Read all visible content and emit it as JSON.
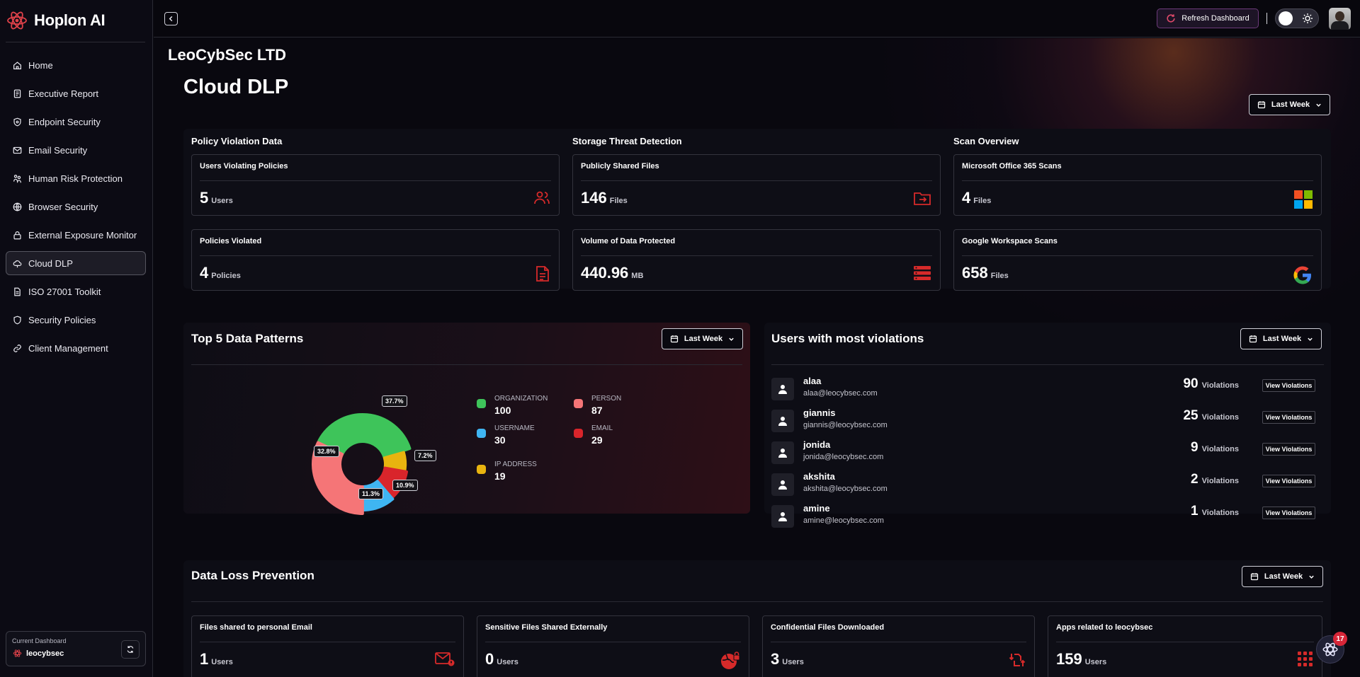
{
  "brand": {
    "name": "Hoplon AI"
  },
  "sidebar": {
    "items": [
      {
        "label": "Home",
        "icon": "home-icon"
      },
      {
        "label": "Executive Report",
        "icon": "report-icon"
      },
      {
        "label": "Endpoint Security",
        "icon": "shield-icon"
      },
      {
        "label": "Email Security",
        "icon": "mail-icon"
      },
      {
        "label": "Human Risk Protection",
        "icon": "users-icon"
      },
      {
        "label": "Browser Security",
        "icon": "globe-icon"
      },
      {
        "label": "External Exposure Monitor",
        "icon": "lock-icon"
      },
      {
        "label": "Cloud DLP",
        "icon": "cloud-icon"
      },
      {
        "label": "ISO 27001 Toolkit",
        "icon": "document-icon"
      },
      {
        "label": "Security Policies",
        "icon": "shield-icon"
      },
      {
        "label": "Client Management",
        "icon": "link-icon"
      }
    ],
    "active": "Cloud DLP",
    "current_dashboard_label": "Current Dashboard",
    "current_dashboard_name": "leocybsec"
  },
  "topbar": {
    "refresh_label": "Refresh Dashboard"
  },
  "org_name": "LeoCybSec LTD",
  "page_title": "Cloud DLP",
  "period_label": "Last Week",
  "colors": {
    "accent_red": "#d62a2a",
    "green": "#3ec45a",
    "blue": "#3fb5f2",
    "salmon": "#f57577",
    "red": "#d9252b",
    "yellow": "#e8b40f"
  },
  "overview": {
    "policy": {
      "title": "Policy Violation Data",
      "cards": [
        {
          "title": "Users Violating Policies",
          "value": "5",
          "unit": "Users",
          "icon": "users-icon"
        },
        {
          "title": "Policies Violated",
          "value": "4",
          "unit": "Policies",
          "icon": "document-icon"
        }
      ]
    },
    "storage": {
      "title": "Storage Threat Detection",
      "cards": [
        {
          "title": "Publicly Shared Files",
          "value": "146",
          "unit": "Files",
          "icon": "folder-share-icon"
        },
        {
          "title": "Volume of Data Protected",
          "value": "440.96",
          "unit": "MB",
          "icon": "database-icon"
        }
      ]
    },
    "scan": {
      "title": "Scan Overview",
      "cards": [
        {
          "title": "Microsoft Office 365 Scans",
          "value": "4",
          "unit": "Files",
          "icon": "microsoft-logo-icon"
        },
        {
          "title": "Google Workspace Scans",
          "value": "658",
          "unit": "Files",
          "icon": "google-logo-icon"
        }
      ]
    }
  },
  "patterns": {
    "title": "Top 5 Data Patterns",
    "legend": [
      {
        "label": "ORGANIZATION",
        "value": "100",
        "color": "#3ec45a"
      },
      {
        "label": "PERSON",
        "value": "87",
        "color": "#f57577"
      },
      {
        "label": "USERNAME",
        "value": "30",
        "color": "#3fb5f2"
      },
      {
        "label": "EMAIL",
        "value": "29",
        "color": "#d9252b"
      },
      {
        "label": "IP ADDRESS",
        "value": "19",
        "color": "#e8b40f"
      }
    ],
    "percent_labels": [
      "37.7%",
      "7.2%",
      "10.9%",
      "11.3%",
      "32.8%"
    ]
  },
  "chart_data": {
    "type": "pie",
    "variant": "donut",
    "title": "Top 5 Data Patterns",
    "categories": [
      "ORGANIZATION",
      "IP ADDRESS",
      "EMAIL",
      "USERNAME",
      "PERSON"
    ],
    "values": [
      100,
      19,
      29,
      30,
      87
    ],
    "percentages": [
      37.7,
      7.2,
      10.9,
      11.3,
      32.8
    ],
    "colors": [
      "#3ec45a",
      "#e8b40f",
      "#d9252b",
      "#3fb5f2",
      "#f57577"
    ]
  },
  "violations": {
    "title": "Users with most violations",
    "unit": "Violations",
    "button_label": "View Violations",
    "users": [
      {
        "name": "alaa",
        "email": "alaa@leocybsec.com",
        "count": "90"
      },
      {
        "name": "giannis",
        "email": "giannis@leocybsec.com",
        "count": "25"
      },
      {
        "name": "jonida",
        "email": "jonida@leocybsec.com",
        "count": "9"
      },
      {
        "name": "akshita",
        "email": "akshita@leocybsec.com",
        "count": "2"
      },
      {
        "name": "amine",
        "email": "amine@leocybsec.com",
        "count": "1"
      }
    ]
  },
  "dlp": {
    "title": "Data Loss Prevention",
    "cards": [
      {
        "title": "Files shared to personal Email",
        "value": "1",
        "unit": "Users",
        "icon": "mail-alert-icon"
      },
      {
        "title": "Sensitive Files Shared Externally",
        "value": "0",
        "unit": "Users",
        "icon": "globe-lock-icon"
      },
      {
        "title": "Confidential Files Downloaded",
        "value": "3",
        "unit": "Users",
        "icon": "file-transfer-icon"
      },
      {
        "title": "Apps related to leocybsec",
        "value": "159",
        "unit": "Users",
        "icon": "apps-grid-icon"
      }
    ]
  },
  "notifications": {
    "count": "17"
  }
}
